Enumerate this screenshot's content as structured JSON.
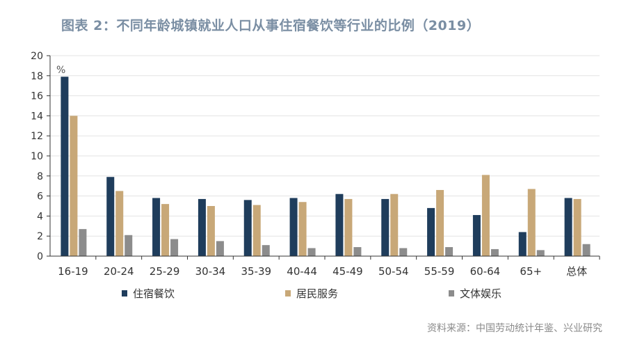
{
  "title": "图表 2：不同年龄城镇就业人口从事住宿餐饮等行业的比例（2019）",
  "source": "资料来源：中国劳动统计年鉴、兴业研究",
  "colors": {
    "axis": "#333333",
    "grid": "#e3e3e3",
    "title": "#7a8ea3"
  },
  "chart_data": {
    "type": "bar",
    "unit_label": "%",
    "categories": [
      "16-19",
      "20-24",
      "25-29",
      "30-34",
      "35-39",
      "40-44",
      "45-49",
      "50-54",
      "55-59",
      "60-64",
      "65+",
      "总体"
    ],
    "ylim": [
      0,
      20
    ],
    "yticks": [
      0,
      2,
      4,
      6,
      8,
      10,
      12,
      14,
      16,
      18,
      20
    ],
    "grid": true,
    "legend_position": "bottom",
    "series": [
      {
        "name": "住宿餐饮",
        "color": "#1f3d5c",
        "values": [
          17.9,
          7.9,
          5.8,
          5.7,
          5.6,
          5.8,
          6.2,
          5.7,
          4.8,
          4.1,
          2.4,
          5.8
        ]
      },
      {
        "name": "居民服务",
        "color": "#c8a878",
        "values": [
          14.0,
          6.5,
          5.2,
          5.0,
          5.1,
          5.4,
          5.7,
          6.2,
          6.6,
          8.1,
          6.7,
          5.7
        ]
      },
      {
        "name": "文体娱乐",
        "color": "#8c8c8c",
        "values": [
          2.7,
          2.1,
          1.7,
          1.5,
          1.1,
          0.8,
          0.9,
          0.8,
          0.9,
          0.7,
          0.6,
          1.2
        ]
      }
    ]
  }
}
